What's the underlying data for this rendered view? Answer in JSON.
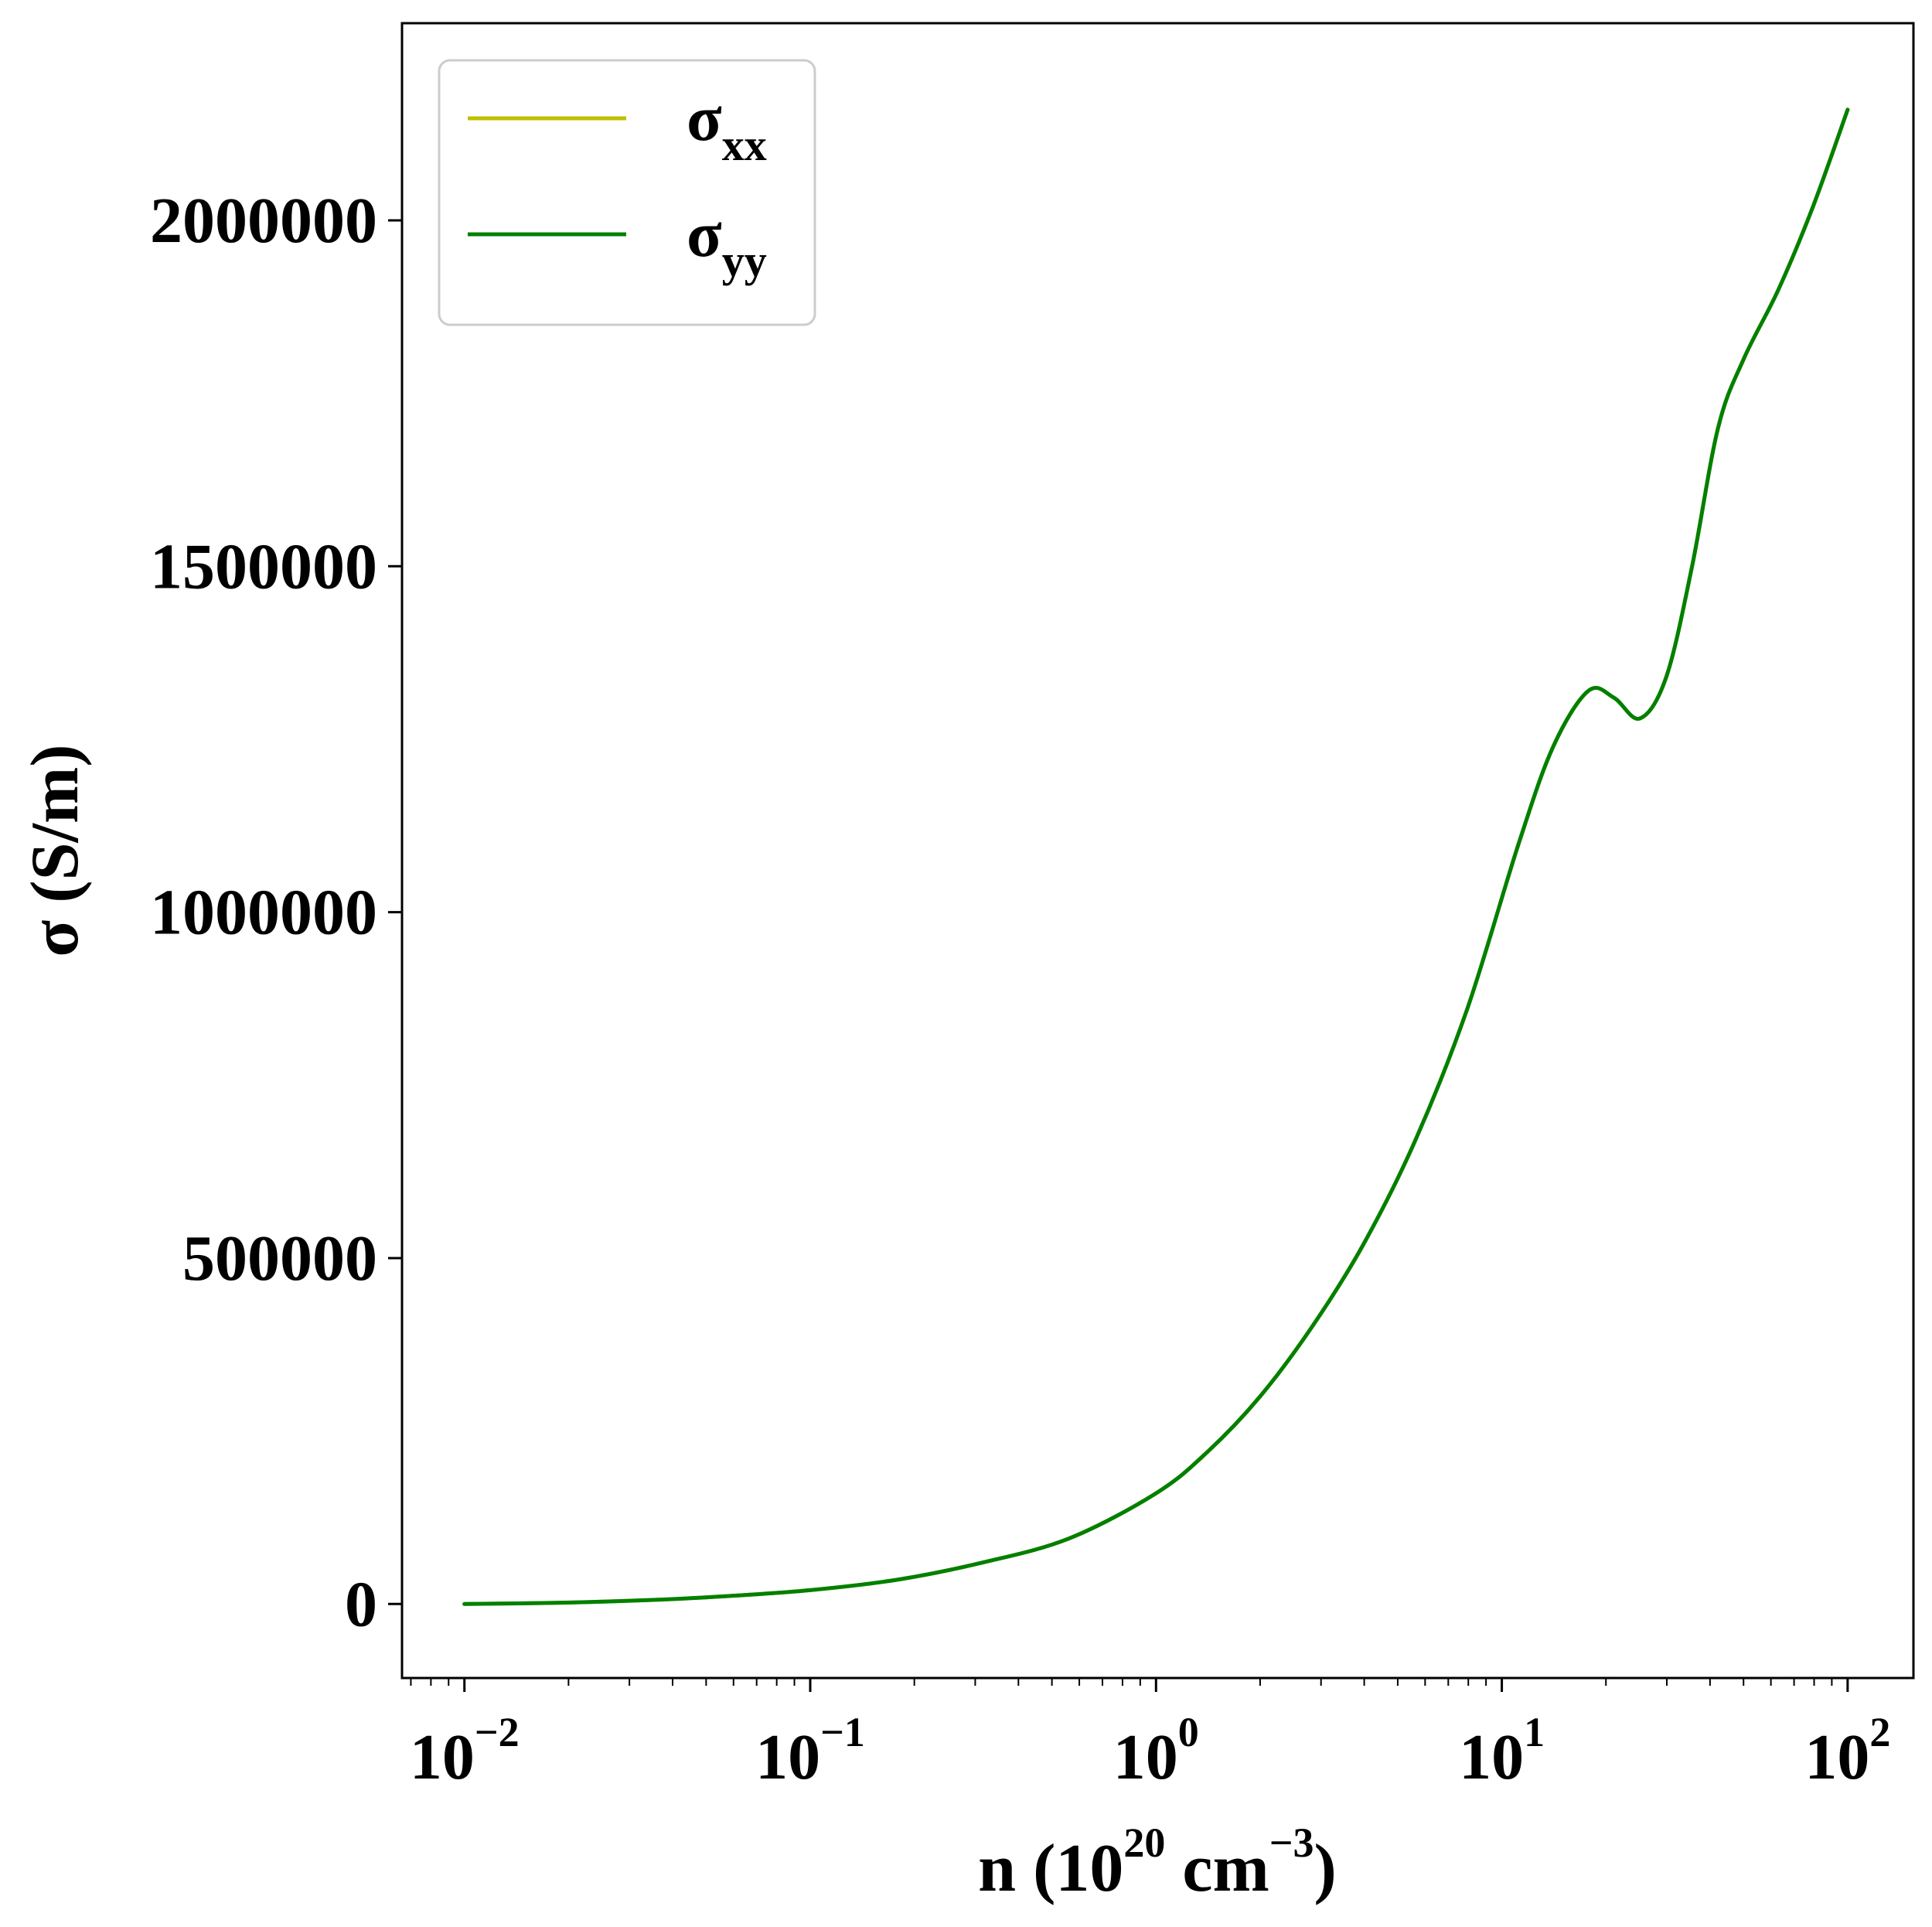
{
  "chart_data": {
    "type": "line",
    "xlabel": {
      "base": "n (10",
      "sup1": "20",
      "mid": " cm",
      "sup2": "−3",
      "end": ")"
    },
    "ylabel": "σ (S/m)",
    "xscale": "log",
    "xlim": [
      0.0066,
      155
    ],
    "ylim": [
      -107000,
      2285000
    ],
    "grid": false,
    "legend_position": "top-left",
    "x_ticks": [
      {
        "value": 0.01,
        "base": "10",
        "exp": "−2"
      },
      {
        "value": 0.1,
        "base": "10",
        "exp": "−1"
      },
      {
        "value": 1,
        "base": "10",
        "exp": "0"
      },
      {
        "value": 10,
        "base": "10",
        "exp": "1"
      },
      {
        "value": 100,
        "base": "10",
        "exp": "2"
      }
    ],
    "y_ticks": [
      {
        "value": 0,
        "label": "0"
      },
      {
        "value": 500000,
        "label": "500000"
      },
      {
        "value": 1000000,
        "label": "1000000"
      },
      {
        "value": 1500000,
        "label": "1500000"
      },
      {
        "value": 2000000,
        "label": "2000000"
      }
    ],
    "series": [
      {
        "name": "xx",
        "symbol": "σ",
        "color": "#bfbf00",
        "x": [
          0.01,
          0.0178,
          0.0316,
          0.0562,
          0.1,
          0.178,
          0.316,
          0.562,
          1.0,
          1.41,
          2.0,
          2.82,
          3.98,
          5.62,
          7.94,
          11.2,
          14.1,
          17.8,
          21.1,
          25.1,
          29.9,
          35.5,
          42.2,
          50.1,
          63.1,
          79.4,
          100
        ],
        "y": [
          0,
          1500,
          5000,
          11000,
          20000,
          35000,
          60000,
          95000,
          160000,
          220000,
          300000,
          400000,
          520000,
          670000,
          860000,
          1100000,
          1240000,
          1320000,
          1310000,
          1280000,
          1340000,
          1500000,
          1700000,
          1800000,
          1900000,
          2020000,
          2160000
        ]
      },
      {
        "name": "yy",
        "symbol": "σ",
        "color": "#008000",
        "x": [
          0.01,
          0.0178,
          0.0316,
          0.0562,
          0.1,
          0.178,
          0.316,
          0.562,
          1.0,
          1.41,
          2.0,
          2.82,
          3.98,
          5.62,
          7.94,
          11.2,
          14.1,
          17.8,
          21.1,
          25.1,
          29.9,
          35.5,
          42.2,
          50.1,
          63.1,
          79.4,
          100
        ],
        "y": [
          0,
          1500,
          5000,
          11000,
          20000,
          35000,
          60000,
          95000,
          160000,
          220000,
          300000,
          400000,
          520000,
          670000,
          860000,
          1100000,
          1240000,
          1320000,
          1310000,
          1280000,
          1340000,
          1500000,
          1700000,
          1800000,
          1900000,
          2020000,
          2160000
        ]
      }
    ]
  }
}
